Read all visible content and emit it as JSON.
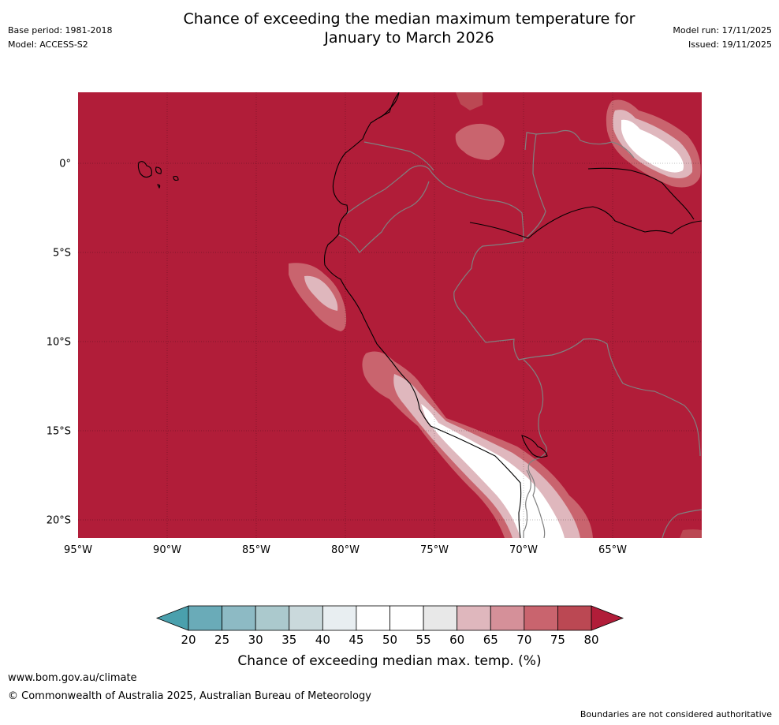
{
  "title": {
    "line1": "Chance of exceeding the median maximum temperature for",
    "line2": "January to March 2026"
  },
  "meta": {
    "base_period": "Base period: 1981-2018",
    "model": "Model: ACCESS-S2",
    "model_run": "Model run: 17/11/2025",
    "issued": "Issued: 19/11/2025"
  },
  "map": {
    "background_color": "#b11d39",
    "lat_labels": [
      "0°",
      "5°S",
      "10°S",
      "15°S",
      "20°S"
    ],
    "lon_labels": [
      "95°W",
      "90°W",
      "85°W",
      "80°W",
      "75°W",
      "70°W",
      "65°W"
    ],
    "lat_values": [
      0,
      -5,
      -10,
      -15,
      -20
    ],
    "lon_values": [
      -95,
      -90,
      -85,
      -80,
      -75,
      -70,
      -65
    ],
    "lat_range": [
      4,
      -21
    ],
    "lon_range": [
      -95,
      -60
    ]
  },
  "colorbar": {
    "ticks": [
      "20",
      "25",
      "30",
      "35",
      "40",
      "45",
      "50",
      "55",
      "60",
      "65",
      "70",
      "75",
      "80"
    ],
    "colors": [
      "#6aabb8",
      "#8dbac4",
      "#abc9cd",
      "#cad9dc",
      "#e8eef1",
      "#ffffff",
      "#ffffff",
      "#e8e8e8",
      "#dfb7bd",
      "#d59099",
      "#c9646e",
      "#bb4853"
    ],
    "under_color": "#4aa0ad",
    "over_color": "#b11d39",
    "title": "Chance of exceeding median max. temp. (%)"
  },
  "footer": {
    "url": "www.bom.gov.au/climate",
    "copyright": "© Commonwealth of Australia 2025, Australian Bureau of Meteorology",
    "disclaimer": "Boundaries are not considered authoritative"
  }
}
